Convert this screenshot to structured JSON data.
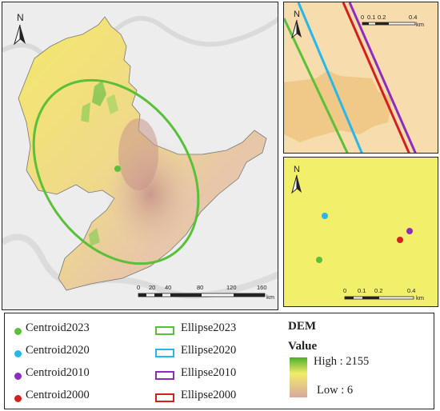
{
  "main_map": {
    "north_label": "N",
    "scale": {
      "ticks": [
        "0",
        "20",
        "40",
        "80",
        "120",
        "160"
      ],
      "unit": "km"
    }
  },
  "inset_top": {
    "north_label": "N",
    "scale": {
      "ticks": [
        "0",
        "0.1",
        "0.2",
        "0.4"
      ],
      "unit": "km"
    }
  },
  "inset_bottom": {
    "north_label": "N",
    "scale": {
      "ticks": [
        "0",
        "0.1",
        "0.2",
        "0.4"
      ],
      "unit": "km"
    }
  },
  "legend": {
    "centroids": [
      {
        "label": "Centroid2023",
        "color": "#5ac03a"
      },
      {
        "label": "Centroid2020",
        "color": "#29b6e8"
      },
      {
        "label": "Centroid2010",
        "color": "#8e2cc0"
      },
      {
        "label": "Centroid2000",
        "color": "#d41f1f"
      }
    ],
    "ellipses": [
      {
        "label": "Ellipse2023",
        "color": "#5ac03a"
      },
      {
        "label": "Ellipse2020",
        "color": "#29b6e8"
      },
      {
        "label": "Ellipse2010",
        "color": "#8e2cc0"
      },
      {
        "label": "Ellipse2000",
        "color": "#d41f1f"
      }
    ],
    "dem": {
      "title": "DEM",
      "value_label": "Value",
      "high_label": "High : 2155",
      "low_label": "Low : 6",
      "high_color": "#4caf2a",
      "low_color": "#d8a7a0"
    }
  }
}
